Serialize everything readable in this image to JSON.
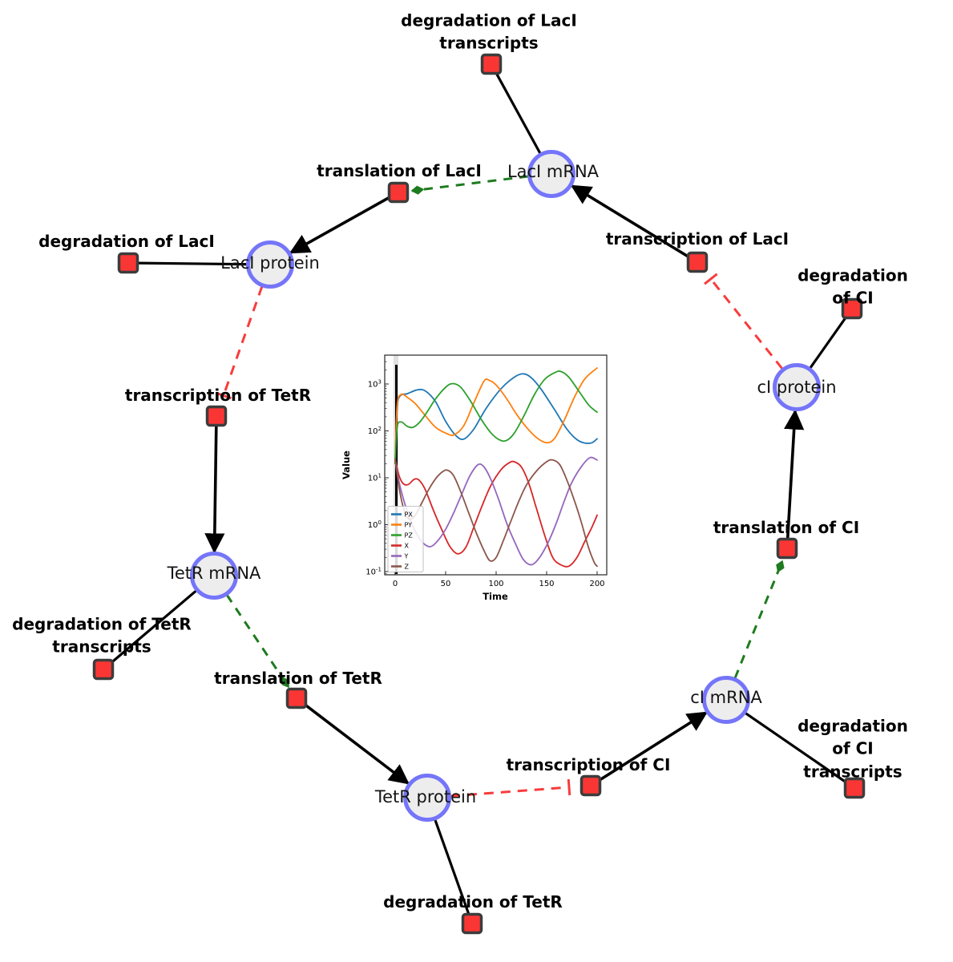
{
  "figure": {
    "background": "#ffffff"
  },
  "nodes": {
    "laci_mrna": {
      "label": "LacI mRNA"
    },
    "laci_protein": {
      "label": "LacI protein"
    },
    "tetr_mrna": {
      "label": "TetR mRNA"
    },
    "tetr_protein": {
      "label": "TetR protein"
    },
    "ci_mrna": {
      "label": "cI mRNA"
    },
    "ci_protein": {
      "label": "cI protein"
    }
  },
  "reactions": {
    "deg_laci_transcripts": {
      "label": "degradation of LacI\ntranscripts"
    },
    "translation_laci": {
      "label": "translation of LacI"
    },
    "deg_laci": {
      "label": "degradation of LacI"
    },
    "transcription_laci": {
      "label": "transcription of LacI"
    },
    "deg_ci": {
      "label": "degradation of CI"
    },
    "transcription_tetr": {
      "label": "transcription of TetR"
    },
    "deg_tetr_transcripts": {
      "label": "degradation of TetR\ntranscripts"
    },
    "translation_tetr": {
      "label": "translation of TetR"
    },
    "deg_tetr": {
      "label": "degradation of TetR"
    },
    "transcription_ci": {
      "label": "transcription of CI"
    },
    "deg_ci_transcripts": {
      "label": "degradation of CI\ntranscripts"
    },
    "translation_ci": {
      "label": "translation of CI"
    }
  },
  "style": {
    "species_fill": "#ededee",
    "species_border": "#7575fa",
    "reaction_fill": "#fa3634",
    "reaction_border": "#3c3c3c",
    "edge_color": "#000000",
    "inhibition_color": "#f83c3c",
    "modifier_color": "#1e7b1e"
  },
  "chart_data": {
    "type": "line",
    "title": "",
    "xlabel": "Time",
    "ylabel": "Value",
    "x_ticks": [
      0,
      50,
      100,
      150,
      200
    ],
    "xlim": [
      -10,
      210
    ],
    "y_scale": "log",
    "y_tick_exponents": [
      -1,
      0,
      1,
      2,
      3
    ],
    "ylim": [
      0.085,
      4200
    ],
    "grid": false,
    "legend_position": "lower left",
    "vline_x": 1,
    "series": [
      {
        "name": "PX",
        "color": "#1f77b4",
        "points": [
          [
            0,
            20
          ],
          [
            2,
            300
          ],
          [
            5,
            560
          ],
          [
            12,
            620
          ],
          [
            22,
            750
          ],
          [
            30,
            710
          ],
          [
            40,
            420
          ],
          [
            50,
            160
          ],
          [
            60,
            80
          ],
          [
            68,
            67
          ],
          [
            78,
            110
          ],
          [
            90,
            300
          ],
          [
            105,
            800
          ],
          [
            118,
            1400
          ],
          [
            127,
            1650
          ],
          [
            135,
            1350
          ],
          [
            145,
            750
          ],
          [
            158,
            280
          ],
          [
            170,
            110
          ],
          [
            180,
            65
          ],
          [
            188,
            55
          ],
          [
            195,
            56
          ],
          [
            200,
            68
          ]
        ]
      },
      {
        "name": "PY",
        "color": "#ff7f0e",
        "points": [
          [
            0,
            20
          ],
          [
            2,
            350
          ],
          [
            6,
            600
          ],
          [
            12,
            520
          ],
          [
            20,
            380
          ],
          [
            30,
            210
          ],
          [
            40,
            120
          ],
          [
            50,
            90
          ],
          [
            58,
            82
          ],
          [
            68,
            130
          ],
          [
            78,
            400
          ],
          [
            88,
            1150
          ],
          [
            93,
            1200
          ],
          [
            100,
            950
          ],
          [
            110,
            500
          ],
          [
            120,
            230
          ],
          [
            130,
            120
          ],
          [
            140,
            72
          ],
          [
            150,
            56
          ],
          [
            158,
            70
          ],
          [
            168,
            180
          ],
          [
            178,
            550
          ],
          [
            188,
            1300
          ],
          [
            200,
            2200
          ]
        ]
      },
      {
        "name": "PZ",
        "color": "#2ca02c",
        "points": [
          [
            0,
            20
          ],
          [
            2,
            120
          ],
          [
            6,
            155
          ],
          [
            12,
            125
          ],
          [
            18,
            120
          ],
          [
            25,
            160
          ],
          [
            32,
            260
          ],
          [
            40,
            480
          ],
          [
            50,
            850
          ],
          [
            57,
            1020
          ],
          [
            65,
            850
          ],
          [
            75,
            420
          ],
          [
            85,
            180
          ],
          [
            95,
            90
          ],
          [
            103,
            65
          ],
          [
            110,
            62
          ],
          [
            118,
            90
          ],
          [
            128,
            220
          ],
          [
            138,
            600
          ],
          [
            148,
            1250
          ],
          [
            158,
            1750
          ],
          [
            164,
            1850
          ],
          [
            172,
            1400
          ],
          [
            182,
            700
          ],
          [
            192,
            350
          ],
          [
            200,
            250
          ]
        ]
      },
      {
        "name": "X",
        "color": "#d62728",
        "points": [
          [
            0,
            25
          ],
          [
            4,
            11
          ],
          [
            8,
            7.5
          ],
          [
            13,
            7.2
          ],
          [
            19,
            9.3
          ],
          [
            24,
            8.8
          ],
          [
            30,
            5.5
          ],
          [
            38,
            2
          ],
          [
            46,
            0.8
          ],
          [
            54,
            0.35
          ],
          [
            62,
            0.24
          ],
          [
            70,
            0.33
          ],
          [
            78,
            0.9
          ],
          [
            86,
            2.5
          ],
          [
            95,
            7
          ],
          [
            105,
            15
          ],
          [
            113,
            21
          ],
          [
            118,
            22
          ],
          [
            125,
            17
          ],
          [
            132,
            8
          ],
          [
            140,
            2.2
          ],
          [
            148,
            0.6
          ],
          [
            156,
            0.2
          ],
          [
            164,
            0.14
          ],
          [
            172,
            0.13
          ],
          [
            180,
            0.2
          ],
          [
            188,
            0.45
          ],
          [
            195,
            0.9
          ],
          [
            200,
            1.6
          ]
        ]
      },
      {
        "name": "Y",
        "color": "#9467bd",
        "points": [
          [
            0,
            25
          ],
          [
            4,
            8
          ],
          [
            10,
            2.6
          ],
          [
            16,
            1.1
          ],
          [
            22,
            0.6
          ],
          [
            28,
            0.4
          ],
          [
            35,
            0.34
          ],
          [
            42,
            0.45
          ],
          [
            50,
            0.8
          ],
          [
            58,
            1.8
          ],
          [
            66,
            4.5
          ],
          [
            74,
            11
          ],
          [
            82,
            19
          ],
          [
            88,
            17
          ],
          [
            95,
            9
          ],
          [
            103,
            3.2
          ],
          [
            111,
            1
          ],
          [
            119,
            0.4
          ],
          [
            127,
            0.18
          ],
          [
            135,
            0.14
          ],
          [
            143,
            0.2
          ],
          [
            151,
            0.4
          ],
          [
            159,
            1
          ],
          [
            167,
            3
          ],
          [
            175,
            8
          ],
          [
            185,
            18
          ],
          [
            193,
            27
          ],
          [
            200,
            24
          ]
        ]
      },
      {
        "name": "Z",
        "color": "#8c564b",
        "points": [
          [
            0,
            25
          ],
          [
            4,
            6
          ],
          [
            9,
            2
          ],
          [
            14,
            1.3
          ],
          [
            20,
            1.6
          ],
          [
            26,
            2.8
          ],
          [
            33,
            5.5
          ],
          [
            40,
            9.5
          ],
          [
            47,
            13.5
          ],
          [
            52,
            14.5
          ],
          [
            58,
            11
          ],
          [
            65,
            5
          ],
          [
            72,
            2
          ],
          [
            80,
            0.7
          ],
          [
            88,
            0.28
          ],
          [
            94,
            0.17
          ],
          [
            100,
            0.2
          ],
          [
            107,
            0.45
          ],
          [
            114,
            1.1
          ],
          [
            122,
            3
          ],
          [
            130,
            7
          ],
          [
            140,
            14
          ],
          [
            150,
            22
          ],
          [
            156,
            24
          ],
          [
            163,
            19
          ],
          [
            170,
            9
          ],
          [
            177,
            3.5
          ],
          [
            184,
            1.2
          ],
          [
            191,
            0.35
          ],
          [
            197,
            0.16
          ],
          [
            200,
            0.13
          ]
        ]
      }
    ]
  }
}
